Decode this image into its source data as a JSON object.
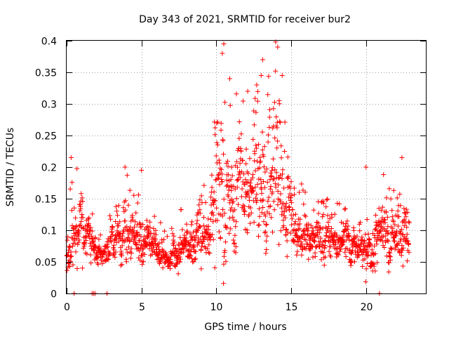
{
  "chart_data": {
    "type": "scatter",
    "title": "Day 343 of 2021, SRMTID for receiver bur2",
    "xlabel": "GPS time / hours",
    "ylabel": "SRMTID / TECUs",
    "xlim": [
      0,
      24
    ],
    "ylim": [
      0,
      0.4
    ],
    "x_ticks": [
      0,
      5,
      10,
      15,
      20
    ],
    "y_ticks": [
      0,
      0.05,
      0.1,
      0.15,
      0.2,
      0.25,
      0.3,
      0.35,
      0.4
    ],
    "x_tick_labels": [
      "0",
      "5",
      "10",
      "15",
      "20"
    ],
    "y_tick_labels": [
      "0",
      "0.05",
      "0.1",
      "0.15",
      "0.2",
      "0.25",
      "0.3",
      "0.35",
      "0.4"
    ],
    "grid": true,
    "marker": "+",
    "series_color": "#ff0000",
    "profile": {
      "x": [
        0,
        0.5,
        1,
        2,
        3,
        4,
        5,
        6,
        6.7,
        7.5,
        8.5,
        9.5,
        10.3,
        11,
        12,
        12.5,
        13.5,
        14,
        14.7,
        15.5,
        16.5,
        17.5,
        18.5,
        19.5,
        20.5,
        21,
        22,
        22.8
      ],
      "median": [
        0.07,
        0.09,
        0.1,
        0.065,
        0.075,
        0.09,
        0.08,
        0.075,
        0.05,
        0.075,
        0.08,
        0.11,
        0.15,
        0.15,
        0.17,
        0.17,
        0.16,
        0.2,
        0.13,
        0.1,
        0.09,
        0.085,
        0.075,
        0.065,
        0.075,
        0.1,
        0.08,
        0.1
      ],
      "spread": [
        0.02,
        0.045,
        0.035,
        0.015,
        0.02,
        0.04,
        0.025,
        0.02,
        0.015,
        0.022,
        0.025,
        0.035,
        0.09,
        0.06,
        0.06,
        0.06,
        0.08,
        0.09,
        0.04,
        0.03,
        0.025,
        0.025,
        0.025,
        0.02,
        0.03,
        0.035,
        0.03,
        0.04
      ]
    },
    "points_count": 1600,
    "x_range": [
      0,
      22.9
    ],
    "peaks": [
      {
        "x": 10.5,
        "y": 0.395
      },
      {
        "x": 10.4,
        "y": 0.38
      },
      {
        "x": 13.1,
        "y": 0.37
      },
      {
        "x": 14.1,
        "y": 0.39
      },
      {
        "x": 13.0,
        "y": 0.345
      },
      {
        "x": 10.9,
        "y": 0.34
      },
      {
        "x": 14.4,
        "y": 0.345
      },
      {
        "x": 12.1,
        "y": 0.32
      },
      {
        "x": 12.7,
        "y": 0.33
      },
      {
        "x": 14.2,
        "y": 0.305
      },
      {
        "x": 0.3,
        "y": 0.215
      },
      {
        "x": 3.9,
        "y": 0.2
      },
      {
        "x": 20.0,
        "y": 0.2
      },
      {
        "x": 22.4,
        "y": 0.215
      },
      {
        "x": 5.0,
        "y": 0.195
      }
    ],
    "zero_points_x": [
      0.5,
      1.7,
      1.8,
      1.9,
      2.7,
      20.9
    ]
  }
}
